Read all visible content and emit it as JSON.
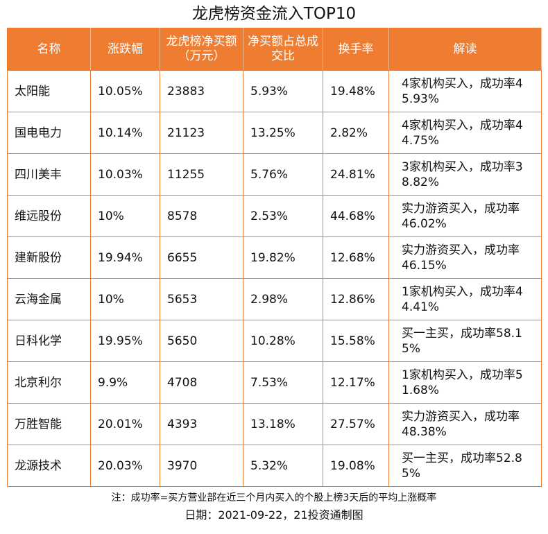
{
  "header": {
    "title": "龙虎榜资金流入TOP10"
  },
  "table": {
    "headers": [
      "名称",
      "涨跌幅",
      "龙虎榜净买额（万元）",
      "净买额占总成交比",
      "换手率",
      "解读"
    ],
    "rows": [
      [
        "太阳能",
        "10.05%",
        "23883",
        "5.93%",
        "19.48%",
        "4家机构买入，成功率45.93%"
      ],
      [
        "国电电力",
        "10.14%",
        "21123",
        "13.25%",
        "2.82%",
        "4家机构买入，成功率44.75%"
      ],
      [
        "四川美丰",
        "10.03%",
        "11255",
        "5.76%",
        "24.81%",
        "3家机构买入，成功率38.82%"
      ],
      [
        "维远股份",
        "10%",
        "8578",
        "2.53%",
        "44.68%",
        "实力游资买入，成功率46.02%"
      ],
      [
        "建新股份",
        "19.94%",
        "6655",
        "19.82%",
        "12.68%",
        "实力游资买入，成功率46.15%"
      ],
      [
        "云海金属",
        "10%",
        "5653",
        "2.98%",
        "12.86%",
        "1家机构买入，成功率44.41%"
      ],
      [
        "日科化学",
        "19.95%",
        "5650",
        "10.28%",
        "15.58%",
        "买一主买，成功率58.15%"
      ],
      [
        "北京利尔",
        "9.9%",
        "4708",
        "7.53%",
        "12.17%",
        "1家机构买入，成功率51.68%"
      ],
      [
        "万胜智能",
        "20.01%",
        "4393",
        "13.18%",
        "27.57%",
        "实力游资买入，成功率48.38%"
      ],
      [
        "龙源技术",
        "20.03%",
        "3970",
        "5.32%",
        "19.08%",
        "买一主买，成功率52.85%"
      ]
    ]
  },
  "footer": {
    "note": "注：成功率=买方营业部在近三个月内买入的个股上榜3天后的平均上涨概率",
    "date": "日期：2021-09-22，21投资通制图"
  }
}
